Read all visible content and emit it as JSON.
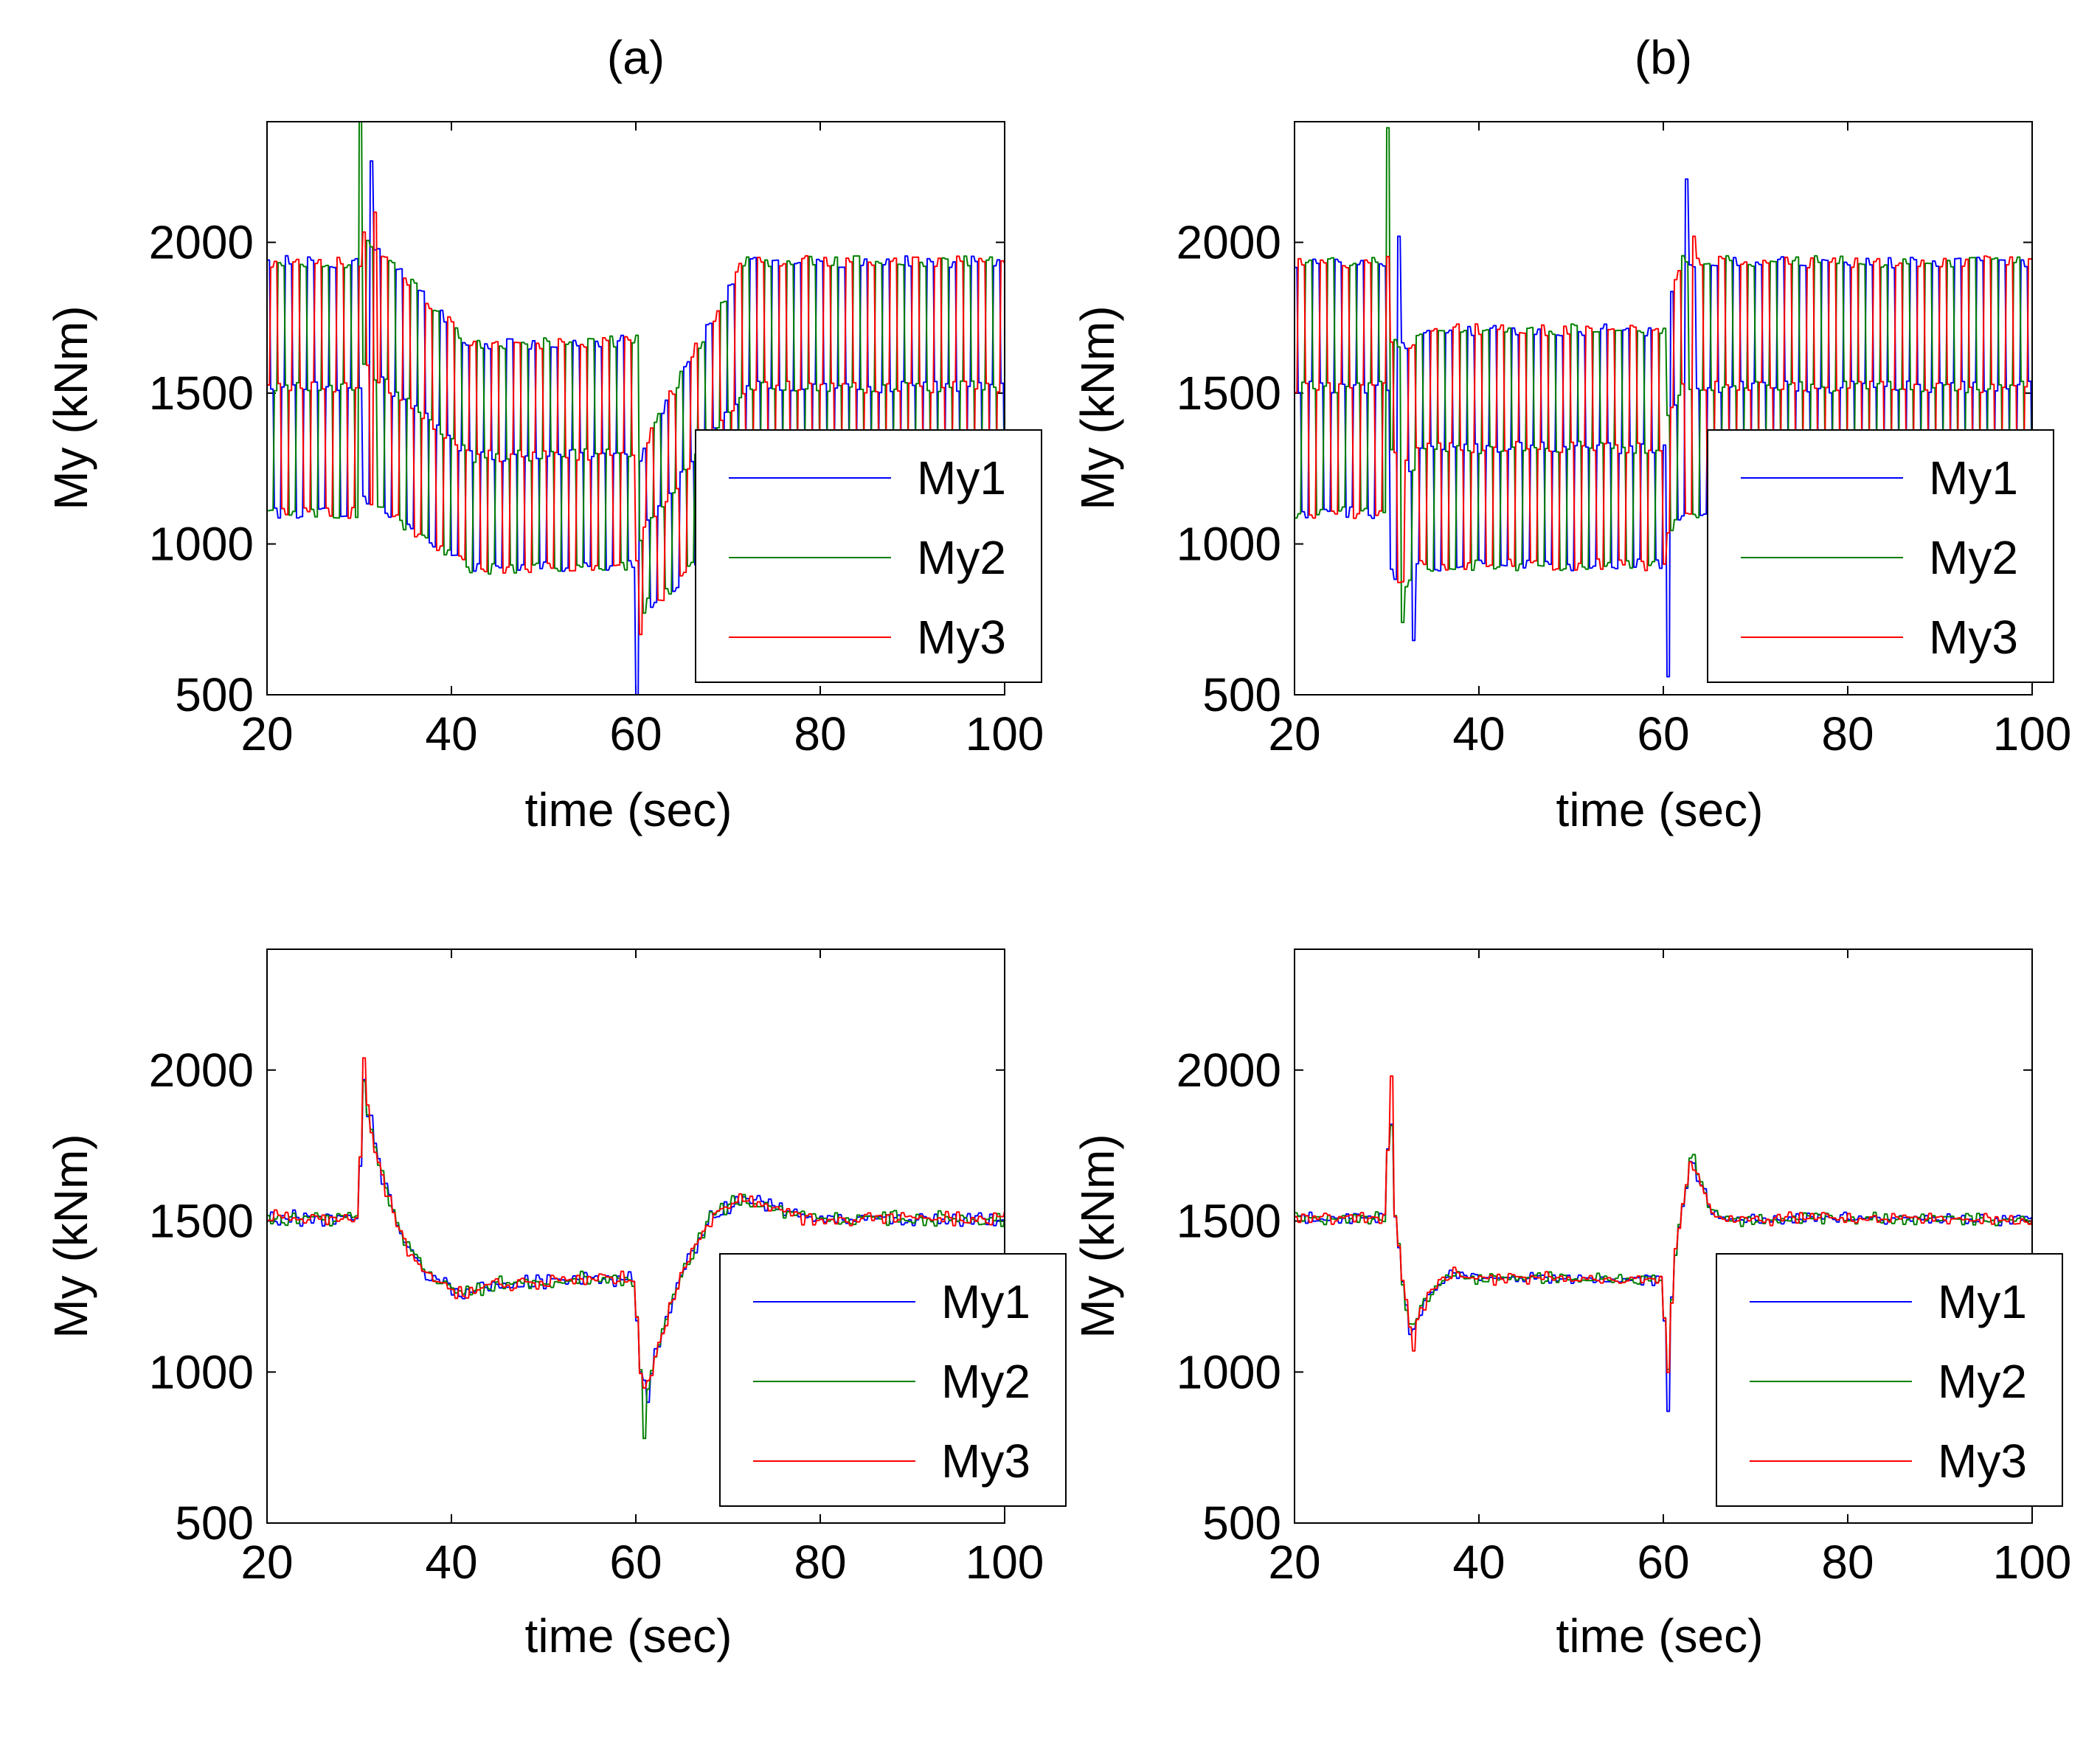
{
  "colors": {
    "My1": "#0000ff",
    "My2": "#008000",
    "My3": "#ff0000",
    "axis": "#000000",
    "background": "#ffffff"
  },
  "chart_data": [
    {
      "id": "top-left",
      "type": "line",
      "title": "(a)",
      "xlabel": "time (sec)",
      "ylabel": "My (kNm)",
      "xlim": [
        20,
        100
      ],
      "ylim": [
        500,
        2400
      ],
      "xticks": [
        20,
        40,
        60,
        80,
        100
      ],
      "yticks": [
        500,
        1000,
        1500,
        2000
      ],
      "legend": {
        "position": "lower-right",
        "entries": [
          "My1",
          "My2",
          "My3"
        ]
      },
      "pattern": "oscillating",
      "step_sec": 0.4,
      "period_sec": 2.4,
      "segments": [
        {
          "t0": 20,
          "t1": 30,
          "m0": 1520,
          "m1": 1520,
          "a0": 480,
          "a1": 480
        },
        {
          "t0": 30,
          "t1": 42,
          "m0": 1600,
          "m1": 1290,
          "a0": 500,
          "a1": 430
        },
        {
          "t0": 42,
          "t1": 60,
          "m0": 1290,
          "m1": 1300,
          "a0": 430,
          "a1": 430
        },
        {
          "t0": 60,
          "t1": 62,
          "m0": 1000,
          "m1": 1100,
          "a0": 300,
          "a1": 350
        },
        {
          "t0": 62,
          "t1": 72,
          "m0": 1100,
          "m1": 1530,
          "a0": 350,
          "a1": 490
        },
        {
          "t0": 72,
          "t1": 100,
          "m0": 1520,
          "m1": 1520,
          "a0": 480,
          "a1": 480
        }
      ],
      "spikes": [
        {
          "series": "My2",
          "t": 30.0,
          "v": 2400
        },
        {
          "series": "My1",
          "t": 31.0,
          "v": 2270
        },
        {
          "series": "My3",
          "t": 31.5,
          "v": 2100
        },
        {
          "series": "My1",
          "t": 60.0,
          "v": 500
        },
        {
          "series": "My3",
          "t": 60.4,
          "v": 700
        },
        {
          "series": "My2",
          "t": 61.2,
          "v": 820
        }
      ],
      "series": [
        {
          "name": "My1",
          "phase_deg": 0
        },
        {
          "name": "My2",
          "phase_deg": 120
        },
        {
          "name": "My3",
          "phase_deg": 240
        }
      ]
    },
    {
      "id": "top-right",
      "type": "line",
      "title": "(b)",
      "xlabel": "time (sec)",
      "ylabel": "My (kNm)",
      "xlim": [
        20,
        100
      ],
      "ylim": [
        500,
        2400
      ],
      "xticks": [
        20,
        40,
        60,
        80,
        100
      ],
      "yticks": [
        500,
        1000,
        1500,
        2000
      ],
      "legend": {
        "position": "lower-right",
        "entries": [
          "My1",
          "My2",
          "My3"
        ]
      },
      "pattern": "oscillating",
      "step_sec": 0.4,
      "period_sec": 2.4,
      "segments": [
        {
          "t0": 20,
          "t1": 30,
          "m0": 1520,
          "m1": 1520,
          "a0": 480,
          "a1": 480
        },
        {
          "t0": 30,
          "t1": 33,
          "m0": 1300,
          "m1": 1250,
          "a0": 450,
          "a1": 450
        },
        {
          "t0": 33,
          "t1": 60,
          "m0": 1320,
          "m1": 1320,
          "a0": 450,
          "a1": 450
        },
        {
          "t0": 60,
          "t1": 62,
          "m0": 1400,
          "m1": 1520,
          "a0": 450,
          "a1": 480
        },
        {
          "t0": 62,
          "t1": 100,
          "m0": 1520,
          "m1": 1520,
          "a0": 480,
          "a1": 480
        }
      ],
      "spikes": [
        {
          "series": "My2",
          "t": 30.0,
          "v": 2380
        },
        {
          "series": "My1",
          "t": 31.2,
          "v": 2020
        },
        {
          "series": "My1",
          "t": 32.8,
          "v": 680
        },
        {
          "series": "My2",
          "t": 31.6,
          "v": 740
        },
        {
          "series": "My1",
          "t": 60.4,
          "v": 560
        },
        {
          "series": "My1",
          "t": 62.5,
          "v": 2210
        },
        {
          "series": "My3",
          "t": 63.0,
          "v": 2020
        }
      ],
      "series": [
        {
          "name": "My1",
          "phase_deg": 0
        },
        {
          "name": "My2",
          "phase_deg": 120
        },
        {
          "name": "My3",
          "phase_deg": 240
        }
      ]
    },
    {
      "id": "bottom-left",
      "type": "line",
      "title": "",
      "xlabel": "time (sec)",
      "ylabel": "My (kNm)",
      "xlim": [
        20,
        100
      ],
      "ylim": [
        500,
        2400
      ],
      "xticks": [
        20,
        40,
        60,
        80,
        100
      ],
      "yticks": [
        500,
        1000,
        1500,
        2000
      ],
      "legend": {
        "position": "lower-right",
        "entries": [
          "My1",
          "My2",
          "My3"
        ]
      },
      "pattern": "smooth",
      "step_sec": 0.4,
      "noise": 18,
      "points": [
        [
          20,
          1510
        ],
        [
          29.8,
          1510
        ],
        [
          30.3,
          2000
        ],
        [
          31,
          1800
        ],
        [
          33,
          1580
        ],
        [
          35,
          1420
        ],
        [
          37,
          1330
        ],
        [
          39,
          1290
        ],
        [
          41,
          1260
        ],
        [
          45,
          1290
        ],
        [
          50,
          1300
        ],
        [
          55,
          1310
        ],
        [
          59.8,
          1310
        ],
        [
          60.3,
          1000
        ],
        [
          61,
          930
        ],
        [
          62,
          1060
        ],
        [
          64,
          1250
        ],
        [
          66,
          1400
        ],
        [
          68,
          1510
        ],
        [
          71,
          1570
        ],
        [
          74,
          1550
        ],
        [
          78,
          1510
        ],
        [
          85,
          1510
        ],
        [
          100,
          1505
        ]
      ],
      "spikes": [
        {
          "series": "My3",
          "t": 30.3,
          "v": 2040
        },
        {
          "series": "My1",
          "t": 31.0,
          "v": 1850
        },
        {
          "series": "My2",
          "t": 60.6,
          "v": 780
        },
        {
          "series": "My1",
          "t": 61.0,
          "v": 900
        }
      ],
      "series": [
        {
          "name": "My1",
          "phase_deg": 0
        },
        {
          "name": "My2",
          "phase_deg": 120
        },
        {
          "name": "My3",
          "phase_deg": 240
        }
      ]
    },
    {
      "id": "bottom-right",
      "type": "line",
      "title": "",
      "xlabel": "time (sec)",
      "ylabel": "My (kNm)",
      "xlim": [
        20,
        100
      ],
      "ylim": [
        500,
        2400
      ],
      "xticks": [
        20,
        40,
        60,
        80,
        100
      ],
      "yticks": [
        500,
        1000,
        1500,
        2000
      ],
      "legend": {
        "position": "lower-right",
        "entries": [
          "My1",
          "My2",
          "My3"
        ]
      },
      "pattern": "smooth",
      "step_sec": 0.4,
      "noise": 14,
      "points": [
        [
          20,
          1510
        ],
        [
          29.8,
          1510
        ],
        [
          30.2,
          1960
        ],
        [
          30.8,
          1520
        ],
        [
          31.6,
          1300
        ],
        [
          32.5,
          1120
        ],
        [
          33.5,
          1200
        ],
        [
          35,
          1280
        ],
        [
          37,
          1330
        ],
        [
          39,
          1310
        ],
        [
          45,
          1310
        ],
        [
          50,
          1310
        ],
        [
          59.8,
          1300
        ],
        [
          60.3,
          960
        ],
        [
          61,
          1350
        ],
        [
          62,
          1550
        ],
        [
          62.8,
          1700
        ],
        [
          64,
          1620
        ],
        [
          65,
          1540
        ],
        [
          67,
          1500
        ],
        [
          75,
          1510
        ],
        [
          100,
          1505
        ]
      ],
      "spikes": [
        {
          "series": "My3",
          "t": 30.3,
          "v": 1980
        },
        {
          "series": "My3",
          "t": 32.8,
          "v": 1070
        },
        {
          "series": "My1",
          "t": 60.3,
          "v": 870
        },
        {
          "series": "My2",
          "t": 63.0,
          "v": 1720
        }
      ],
      "series": [
        {
          "name": "My1",
          "phase_deg": 0
        },
        {
          "name": "My2",
          "phase_deg": 120
        },
        {
          "name": "My3",
          "phase_deg": 240
        }
      ]
    }
  ]
}
